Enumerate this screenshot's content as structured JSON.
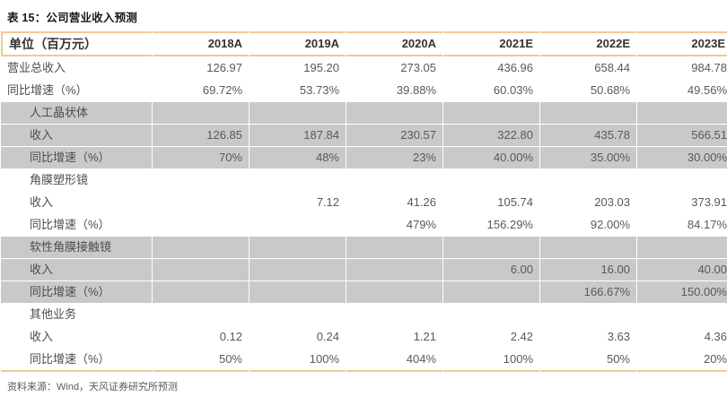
{
  "title": "表 15：公司营业收入预测",
  "source": "资料来源：Wind，天风证券研究所预测",
  "colors": {
    "accent_border": "#f6c794",
    "section_shade": "#c9c9c9",
    "title_text": "#1a1a1a",
    "body_text": "#595959"
  },
  "table": {
    "columns": [
      "单位（百万元）",
      "2018A",
      "2019A",
      "2020A",
      "2021E",
      "2022E",
      "2023E"
    ],
    "rows": [
      {
        "label": "营业总收入",
        "indent": false,
        "shaded": false,
        "values": [
          "126.97",
          "195.20",
          "273.05",
          "436.96",
          "658.44",
          "984.78"
        ]
      },
      {
        "label": "同比增速（%）",
        "indent": false,
        "shaded": false,
        "values": [
          "69.72%",
          "53.73%",
          "39.88%",
          "60.03%",
          "50.68%",
          "49.56%"
        ]
      },
      {
        "label": "人工晶状体",
        "indent": true,
        "shaded": true,
        "values": [
          "",
          "",
          "",
          "",
          "",
          ""
        ]
      },
      {
        "label": "收入",
        "indent": true,
        "shaded": true,
        "values": [
          "126.85",
          "187.84",
          "230.57",
          "322.80",
          "435.78",
          "566.51"
        ]
      },
      {
        "label": "同比增速（%）",
        "indent": true,
        "shaded": true,
        "values": [
          "70%",
          "48%",
          "23%",
          "40.00%",
          "35.00%",
          "30.00%"
        ]
      },
      {
        "label": "角膜塑形镜",
        "indent": true,
        "shaded": false,
        "values": [
          "",
          "",
          "",
          "",
          "",
          ""
        ]
      },
      {
        "label": "收入",
        "indent": true,
        "shaded": false,
        "values": [
          "",
          "7.12",
          "41.26",
          "105.74",
          "203.03",
          "373.91"
        ]
      },
      {
        "label": "同比增速（%）",
        "indent": true,
        "shaded": false,
        "values": [
          "",
          "",
          "479%",
          "156.29%",
          "92.00%",
          "84.17%"
        ]
      },
      {
        "label": "软性角膜接触镜",
        "indent": true,
        "shaded": true,
        "values": [
          "",
          "",
          "",
          "",
          "",
          ""
        ]
      },
      {
        "label": "收入",
        "indent": true,
        "shaded": true,
        "values": [
          "",
          "",
          "",
          "6.00",
          "16.00",
          "40.00"
        ]
      },
      {
        "label": "同比增速（%）",
        "indent": true,
        "shaded": true,
        "values": [
          "",
          "",
          "",
          "",
          "166.67%",
          "150.00%"
        ]
      },
      {
        "label": "其他业务",
        "indent": true,
        "shaded": false,
        "values": [
          "",
          "",
          "",
          "",
          "",
          ""
        ]
      },
      {
        "label": "收入",
        "indent": true,
        "shaded": false,
        "values": [
          "0.12",
          "0.24",
          "1.21",
          "2.42",
          "3.63",
          "4.36"
        ]
      },
      {
        "label": "同比增速（%）",
        "indent": true,
        "shaded": false,
        "values": [
          "50%",
          "100%",
          "404%",
          "100%",
          "50%",
          "20%"
        ]
      }
    ]
  }
}
